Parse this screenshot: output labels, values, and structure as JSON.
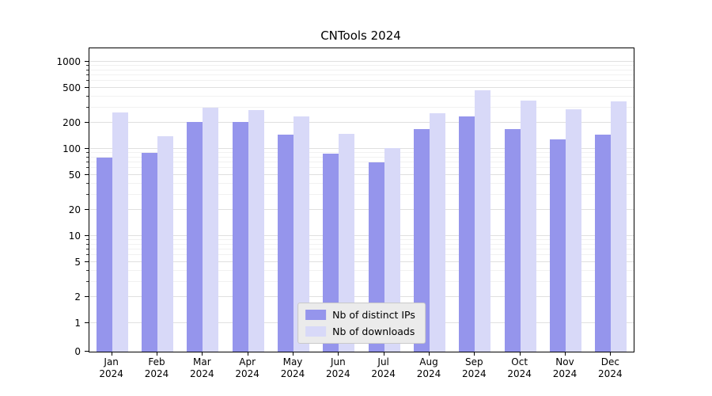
{
  "chart_data": {
    "type": "bar",
    "title": "CNTools 2024",
    "categories": [
      "Jan 2024",
      "Feb 2024",
      "Mar 2024",
      "Apr 2024",
      "May 2024",
      "Jun 2024",
      "Jul 2024",
      "Aug 2024",
      "Sep 2024",
      "Oct 2024",
      "Nov 2024",
      "Dec 2024"
    ],
    "month_labels": [
      "Jan",
      "Feb",
      "Mar",
      "Apr",
      "May",
      "Jun",
      "Jul",
      "Aug",
      "Sep",
      "Oct",
      "Nov",
      "Dec"
    ],
    "year_label": "2024",
    "series": [
      {
        "name": "Nb of distinct IPs",
        "color": "#9595ec",
        "values": [
          80,
          90,
          205,
          205,
          145,
          88,
          70,
          170,
          235,
          170,
          128,
          145
        ]
      },
      {
        "name": "Nb of downloads",
        "color": "#d8d9f8",
        "values": [
          260,
          140,
          300,
          280,
          235,
          148,
          103,
          255,
          475,
          360,
          285,
          350
        ]
      }
    ],
    "yscale": "symlog",
    "yticks": [
      0,
      1,
      2,
      5,
      10,
      20,
      50,
      100,
      200,
      500,
      1000
    ],
    "y_minor_ticks": [
      3,
      4,
      6,
      7,
      8,
      9,
      30,
      40,
      60,
      70,
      80,
      90,
      300,
      400,
      600,
      700,
      800,
      900
    ],
    "ylim": [
      0,
      1500
    ],
    "grid": true,
    "legend_position": "lower center"
  }
}
